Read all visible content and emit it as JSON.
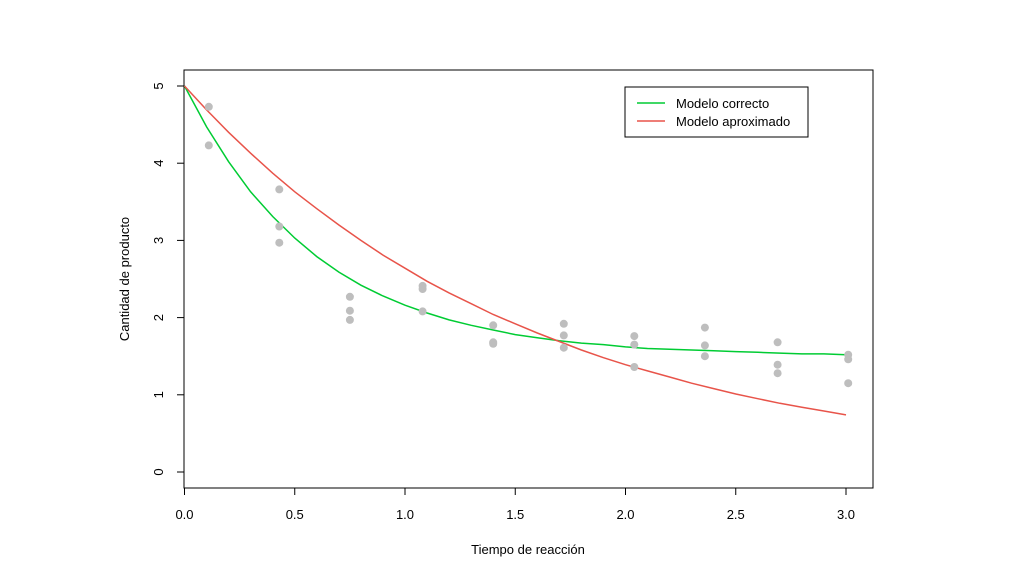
{
  "chart_data": {
    "type": "scatter",
    "title": "",
    "xlabel": "Tiempo de reacción",
    "ylabel": "Cantidad de producto",
    "xlim": [
      0,
      3.0
    ],
    "ylim": [
      0,
      5
    ],
    "xticks": [
      "0.0",
      "0.5",
      "1.0",
      "1.5",
      "2.0",
      "2.5",
      "3.0"
    ],
    "yticks": [
      "0",
      "1",
      "2",
      "3",
      "4",
      "5"
    ],
    "grid": false,
    "legend_position": "top-right",
    "points": {
      "color": "#bebebe",
      "x": [
        0.11,
        0.11,
        0.43,
        0.43,
        0.43,
        0.75,
        0.75,
        0.75,
        1.08,
        1.08,
        1.08,
        1.4,
        1.4,
        1.4,
        1.72,
        1.72,
        1.72,
        2.04,
        2.04,
        2.04,
        2.36,
        2.36,
        2.36,
        2.69,
        2.69,
        2.69,
        3.01,
        3.01,
        3.01
      ],
      "y": [
        4.73,
        4.23,
        3.66,
        3.18,
        2.97,
        2.27,
        2.09,
        1.97,
        2.41,
        2.37,
        2.08,
        1.9,
        1.68,
        1.66,
        1.92,
        1.77,
        1.61,
        1.76,
        1.65,
        1.36,
        1.87,
        1.64,
        1.5,
        1.68,
        1.39,
        1.28,
        1.52,
        1.46,
        1.15
      ]
    },
    "series": [
      {
        "name": "Modelo correcto",
        "color": "#00cc33",
        "x": [
          0.0,
          0.1,
          0.2,
          0.3,
          0.4,
          0.5,
          0.6,
          0.7,
          0.8,
          0.9,
          1.0,
          1.1,
          1.2,
          1.3,
          1.4,
          1.5,
          1.6,
          1.7,
          1.8,
          1.9,
          2.0,
          2.1,
          2.2,
          2.3,
          2.4,
          2.5,
          2.6,
          2.7,
          2.8,
          2.9,
          3.0
        ],
        "y": [
          5.0,
          4.47,
          4.02,
          3.63,
          3.31,
          3.03,
          2.79,
          2.59,
          2.42,
          2.28,
          2.16,
          2.06,
          1.97,
          1.9,
          1.84,
          1.78,
          1.74,
          1.7,
          1.67,
          1.65,
          1.62,
          1.6,
          1.59,
          1.58,
          1.57,
          1.56,
          1.55,
          1.54,
          1.53,
          1.53,
          1.52
        ]
      },
      {
        "name": "Modelo aproximado",
        "color": "#e8544a",
        "x": [
          0.0,
          0.1,
          0.2,
          0.3,
          0.4,
          0.5,
          0.6,
          0.7,
          0.8,
          0.9,
          1.0,
          1.1,
          1.2,
          1.3,
          1.4,
          1.5,
          1.6,
          1.7,
          1.8,
          1.9,
          2.0,
          2.1,
          2.2,
          2.3,
          2.4,
          2.5,
          2.6,
          2.7,
          2.8,
          2.9,
          3.0
        ],
        "y": [
          5.0,
          4.69,
          4.4,
          4.13,
          3.87,
          3.63,
          3.41,
          3.2,
          3.0,
          2.81,
          2.64,
          2.47,
          2.32,
          2.18,
          2.04,
          1.92,
          1.8,
          1.69,
          1.58,
          1.48,
          1.39,
          1.31,
          1.23,
          1.15,
          1.08,
          1.01,
          0.95,
          0.89,
          0.84,
          0.79,
          0.74
        ]
      }
    ]
  }
}
